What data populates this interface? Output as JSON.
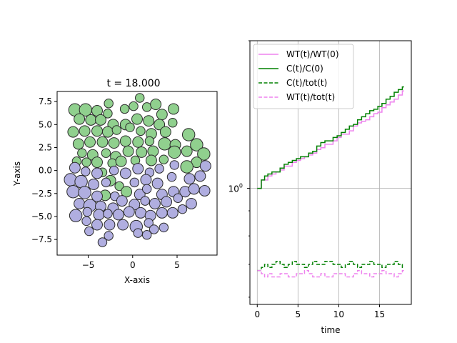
{
  "chart_data": [
    {
      "type": "scatter",
      "title": "t = 18.000",
      "xlabel": "X-axis",
      "ylabel": "Y-axis",
      "xlim": [
        -8.5,
        9.5
      ],
      "ylim": [
        -9.2,
        8.6
      ],
      "xticks": [
        -5,
        0,
        5
      ],
      "xtick_labels": [
        "−5",
        "0",
        "5"
      ],
      "yticks": [
        -7.5,
        -5.0,
        -2.5,
        0.0,
        2.5,
        5.0,
        7.5
      ],
      "ytick_labels": [
        "−7.5",
        "−5.0",
        "−2.5",
        "0.0",
        "2.5",
        "5.0",
        "7.5"
      ],
      "grid": false,
      "colors": {
        "green": "#90d08e",
        "purple": "#b0aee0",
        "edge": "#2a2a2a"
      },
      "cells": {
        "green": [
          [
            -6.5,
            6.6,
            0.7
          ],
          [
            -5.3,
            6.6,
            0.7
          ],
          [
            -4.0,
            6.5,
            0.6
          ],
          [
            -2.7,
            7.3,
            0.5
          ],
          [
            -2.8,
            6.2,
            0.5
          ],
          [
            -0.9,
            6.7,
            0.5
          ],
          [
            0.1,
            7.0,
            0.5
          ],
          [
            0.8,
            7.9,
            0.5
          ],
          [
            1.6,
            6.9,
            0.5
          ],
          [
            2.6,
            7.2,
            0.6
          ],
          [
            3.3,
            6.1,
            0.6
          ],
          [
            4.6,
            6.7,
            0.6
          ],
          [
            -6.0,
            5.6,
            0.6
          ],
          [
            -4.7,
            5.5,
            0.6
          ],
          [
            -3.6,
            5.5,
            0.6
          ],
          [
            -2.2,
            5.0,
            0.6
          ],
          [
            -0.8,
            5.0,
            0.6
          ],
          [
            0.5,
            5.6,
            0.6
          ],
          [
            1.8,
            5.4,
            0.6
          ],
          [
            3.0,
            5.0,
            0.6
          ],
          [
            4.5,
            5.2,
            0.5
          ],
          [
            -6.7,
            4.2,
            0.6
          ],
          [
            -5.4,
            4.3,
            0.6
          ],
          [
            -4.0,
            4.3,
            0.6
          ],
          [
            -2.8,
            4.2,
            0.6
          ],
          [
            -1.8,
            4.4,
            0.5
          ],
          [
            -0.3,
            4.7,
            0.5
          ],
          [
            0.9,
            4.3,
            0.5
          ],
          [
            2.1,
            4.0,
            0.6
          ],
          [
            3.7,
            4.2,
            0.6
          ],
          [
            6.3,
            3.9,
            0.7
          ],
          [
            -6.1,
            2.9,
            0.6
          ],
          [
            -4.8,
            3.1,
            0.6
          ],
          [
            -3.4,
            3.1,
            0.6
          ],
          [
            -2.1,
            3.0,
            0.6
          ],
          [
            -0.8,
            3.2,
            0.6
          ],
          [
            0.6,
            3.1,
            0.6
          ],
          [
            1.9,
            3.2,
            0.5
          ],
          [
            3.6,
            2.9,
            0.7
          ],
          [
            4.8,
            2.8,
            0.6
          ],
          [
            7.2,
            2.8,
            0.7
          ],
          [
            -5.7,
            1.9,
            0.5
          ],
          [
            -4.5,
            1.7,
            0.6
          ],
          [
            -3.0,
            1.9,
            0.5
          ],
          [
            -1.9,
            1.5,
            0.6
          ],
          [
            -0.5,
            2.1,
            0.6
          ],
          [
            1.0,
            2.0,
            0.6
          ],
          [
            2.3,
            2.1,
            0.6
          ],
          [
            4.7,
            2.0,
            0.7
          ],
          [
            6.1,
            2.1,
            0.6
          ],
          [
            8.0,
            1.8,
            0.7
          ],
          [
            -6.3,
            1.0,
            0.5
          ],
          [
            -5.2,
            0.9,
            0.5
          ],
          [
            -4.0,
            0.9,
            0.6
          ],
          [
            -2.3,
            0.8,
            0.5
          ],
          [
            -1.3,
            1.0,
            0.6
          ],
          [
            0.3,
            1.1,
            0.5
          ],
          [
            2.1,
            1.1,
            0.6
          ],
          [
            3.5,
            1.2,
            0.5
          ],
          [
            7.2,
            0.9,
            0.6
          ],
          [
            -3.4,
            -0.2,
            0.5
          ],
          [
            6.1,
            0.4,
            0.7
          ],
          [
            -2.5,
            -1.1,
            0.6
          ],
          [
            -1.5,
            -1.7,
            0.5
          ],
          [
            -0.7,
            -2.3,
            0.6
          ],
          [
            -3.1,
            -2.7,
            0.6
          ]
        ],
        "purple": [
          [
            -6.5,
            0.3,
            0.6
          ],
          [
            -5.3,
            -0.1,
            0.5
          ],
          [
            -4.0,
            -0.3,
            0.6
          ],
          [
            -2.1,
            0.0,
            0.5
          ],
          [
            -0.8,
            -0.3,
            0.6
          ],
          [
            0.6,
            0.2,
            0.6
          ],
          [
            1.9,
            -0.2,
            0.5
          ],
          [
            3.0,
            0.2,
            0.5
          ],
          [
            4.7,
            0.6,
            0.5
          ],
          [
            8.2,
            0.5,
            0.6
          ],
          [
            -7.0,
            -1.0,
            0.7
          ],
          [
            -5.8,
            -1.2,
            0.7
          ],
          [
            -4.4,
            -1.5,
            0.6
          ],
          [
            -3.0,
            -1.3,
            0.5
          ],
          [
            0.2,
            -1.3,
            0.5
          ],
          [
            1.5,
            -1.0,
            0.6
          ],
          [
            2.8,
            -1.4,
            0.6
          ],
          [
            4.4,
            -0.7,
            0.5
          ],
          [
            6.4,
            -0.9,
            0.6
          ],
          [
            7.6,
            -0.6,
            0.6
          ],
          [
            -6.7,
            -2.3,
            0.7
          ],
          [
            -5.4,
            -2.4,
            0.7
          ],
          [
            -4.0,
            -2.8,
            0.6
          ],
          [
            -2.0,
            -2.8,
            0.5
          ],
          [
            0.8,
            -2.6,
            0.6
          ],
          [
            1.6,
            -2.0,
            0.5
          ],
          [
            3.3,
            -2.6,
            0.6
          ],
          [
            4.6,
            -2.3,
            0.6
          ],
          [
            5.9,
            -2.3,
            0.6
          ],
          [
            6.9,
            -2.0,
            0.6
          ],
          [
            8.1,
            -2.2,
            0.6
          ],
          [
            -6.0,
            -3.6,
            0.6
          ],
          [
            -4.8,
            -3.8,
            0.7
          ],
          [
            -3.6,
            -3.9,
            0.6
          ],
          [
            -2.2,
            -4.1,
            0.6
          ],
          [
            -1.2,
            -3.3,
            0.6
          ],
          [
            0.2,
            -3.7,
            0.6
          ],
          [
            1.4,
            -3.3,
            0.5
          ],
          [
            2.5,
            -3.6,
            0.6
          ],
          [
            3.8,
            -3.4,
            0.6
          ],
          [
            5.1,
            -3.0,
            0.5
          ],
          [
            6.6,
            -3.6,
            0.6
          ],
          [
            -6.4,
            -4.9,
            0.7
          ],
          [
            -5.1,
            -4.5,
            0.5
          ],
          [
            -3.8,
            -4.8,
            0.6
          ],
          [
            -2.8,
            -4.7,
            0.5
          ],
          [
            -1.6,
            -4.8,
            0.6
          ],
          [
            -0.4,
            -4.5,
            0.6
          ],
          [
            0.9,
            -4.6,
            0.6
          ],
          [
            2.0,
            -4.9,
            0.6
          ],
          [
            3.3,
            -4.6,
            0.6
          ],
          [
            4.5,
            -4.6,
            0.6
          ],
          [
            5.6,
            -4.2,
            0.5
          ],
          [
            -5.2,
            -5.5,
            0.5
          ],
          [
            -4.0,
            -5.9,
            0.6
          ],
          [
            -2.6,
            -5.9,
            0.6
          ],
          [
            -1.1,
            -5.9,
            0.6
          ],
          [
            0.4,
            -6.1,
            0.7
          ],
          [
            1.8,
            -5.7,
            0.5
          ],
          [
            3.5,
            -6.2,
            0.5
          ],
          [
            -4.9,
            -6.6,
            0.5
          ],
          [
            -2.7,
            -7.1,
            0.5
          ],
          [
            0.6,
            -6.8,
            0.5
          ],
          [
            2.4,
            -6.4,
            0.5
          ],
          [
            1.6,
            -7.0,
            0.5
          ],
          [
            -3.4,
            -7.8,
            0.5
          ]
        ]
      }
    },
    {
      "type": "line",
      "xlabel": "time",
      "ylabel": "",
      "xscale": "linear",
      "yscale": "log",
      "xlim": [
        -0.9,
        18.9
      ],
      "ylim": [
        0.58,
        2.0
      ],
      "xticks": [
        0,
        5,
        10,
        15
      ],
      "xtick_labels": [
        "0",
        "5",
        "10",
        "15"
      ],
      "ytick_major": [
        1.0
      ],
      "ytick_major_labels": [
        "10",
        "0"
      ],
      "ytick_minor": [
        0.6,
        0.7,
        0.8,
        0.9,
        2.0
      ],
      "grid": true,
      "legend_position": "upper-left",
      "legend": [
        "WT(t)/WT(0)",
        "C(t)/C(0)",
        "C(t)/tot(t)",
        "WT(t)/tot(t)"
      ],
      "series": [
        {
          "name": "WT(t)/WT(0)",
          "color": "#ee82ee",
          "style": "solid",
          "x": [
            0,
            0.5,
            0.9,
            1.3,
            1.8,
            2.3,
            2.8,
            3.3,
            3.8,
            4.3,
            4.8,
            5.3,
            5.8,
            6.3,
            6.8,
            7.3,
            7.8,
            8.3,
            8.8,
            9.3,
            9.8,
            10.3,
            10.8,
            11.3,
            11.8,
            12.3,
            12.8,
            13.3,
            13.8,
            14.3,
            14.8,
            15.3,
            15.8,
            16.3,
            16.8,
            17.3,
            17.8,
            18.0
          ],
          "y": [
            1.0,
            1.04,
            1.04,
            1.06,
            1.07,
            1.08,
            1.09,
            1.11,
            1.11,
            1.13,
            1.14,
            1.15,
            1.16,
            1.17,
            1.18,
            1.2,
            1.21,
            1.23,
            1.23,
            1.25,
            1.27,
            1.29,
            1.29,
            1.31,
            1.34,
            1.36,
            1.37,
            1.38,
            1.4,
            1.42,
            1.43,
            1.46,
            1.48,
            1.5,
            1.52,
            1.55,
            1.58,
            1.58
          ]
        },
        {
          "name": "C(t)/C(0)",
          "color": "#008000",
          "style": "solid",
          "x": [
            0,
            0.5,
            0.9,
            1.3,
            1.8,
            2.3,
            2.8,
            3.3,
            3.8,
            4.3,
            4.8,
            5.3,
            5.8,
            6.3,
            6.8,
            7.3,
            7.8,
            8.3,
            8.8,
            9.3,
            9.8,
            10.3,
            10.8,
            11.3,
            11.8,
            12.3,
            12.8,
            13.3,
            13.8,
            14.3,
            14.8,
            15.3,
            15.8,
            16.3,
            16.8,
            17.3,
            17.8,
            18.0
          ],
          "y": [
            1.0,
            1.04,
            1.06,
            1.07,
            1.08,
            1.08,
            1.1,
            1.12,
            1.13,
            1.14,
            1.15,
            1.16,
            1.16,
            1.18,
            1.19,
            1.22,
            1.24,
            1.25,
            1.25,
            1.27,
            1.28,
            1.3,
            1.32,
            1.34,
            1.35,
            1.38,
            1.4,
            1.42,
            1.44,
            1.45,
            1.47,
            1.49,
            1.52,
            1.54,
            1.57,
            1.59,
            1.61,
            1.61
          ]
        },
        {
          "name": "C(t)/tot(t)",
          "color": "#008000",
          "style": "dashed",
          "x": [
            0,
            0.5,
            0.9,
            1.3,
            1.8,
            2.3,
            2.8,
            3.3,
            3.8,
            4.3,
            4.8,
            5.3,
            5.8,
            6.3,
            6.8,
            7.3,
            7.8,
            8.3,
            8.8,
            9.3,
            9.8,
            10.3,
            10.8,
            11.3,
            11.8,
            12.3,
            12.8,
            13.3,
            13.8,
            14.3,
            14.8,
            15.3,
            15.8,
            16.3,
            16.8,
            17.3,
            17.8,
            18.0
          ],
          "y": [
            0.68,
            0.69,
            0.7,
            0.69,
            0.7,
            0.71,
            0.7,
            0.69,
            0.7,
            0.71,
            0.7,
            0.7,
            0.69,
            0.7,
            0.71,
            0.7,
            0.7,
            0.71,
            0.71,
            0.7,
            0.7,
            0.69,
            0.7,
            0.71,
            0.7,
            0.69,
            0.7,
            0.7,
            0.71,
            0.7,
            0.7,
            0.69,
            0.7,
            0.7,
            0.71,
            0.7,
            0.69,
            0.69
          ]
        },
        {
          "name": "WT(t)/tot(t)",
          "color": "#ee82ee",
          "style": "dashed",
          "x": [
            0,
            0.5,
            0.9,
            1.3,
            1.8,
            2.3,
            2.8,
            3.3,
            3.8,
            4.3,
            4.8,
            5.3,
            5.8,
            6.3,
            6.8,
            7.3,
            7.8,
            8.3,
            8.8,
            9.3,
            9.8,
            10.3,
            10.8,
            11.3,
            11.8,
            12.3,
            12.8,
            13.3,
            13.8,
            14.3,
            14.8,
            15.3,
            15.8,
            16.3,
            16.8,
            17.3,
            17.8,
            18.0
          ],
          "y": [
            0.68,
            0.67,
            0.66,
            0.67,
            0.66,
            0.66,
            0.67,
            0.67,
            0.66,
            0.66,
            0.67,
            0.67,
            0.68,
            0.67,
            0.66,
            0.66,
            0.67,
            0.66,
            0.66,
            0.67,
            0.67,
            0.67,
            0.66,
            0.66,
            0.67,
            0.68,
            0.67,
            0.67,
            0.66,
            0.67,
            0.67,
            0.68,
            0.67,
            0.67,
            0.66,
            0.67,
            0.68,
            0.68
          ]
        }
      ]
    }
  ]
}
